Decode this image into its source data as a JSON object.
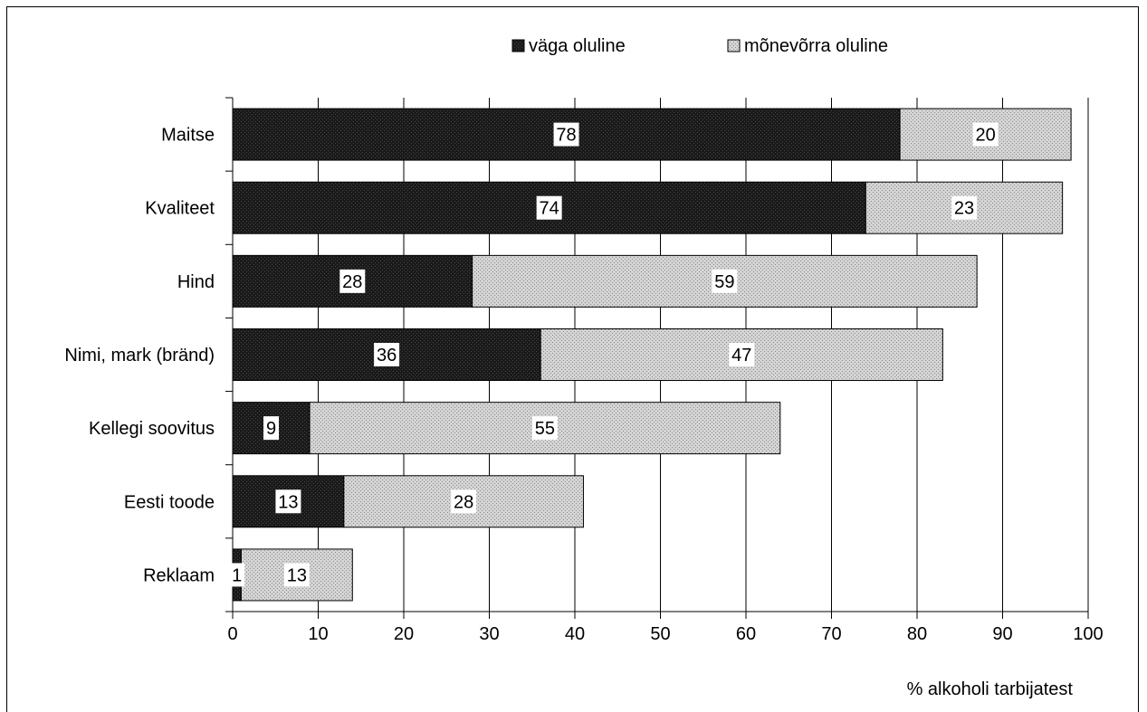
{
  "chart_data": {
    "type": "bar",
    "orientation": "horizontal",
    "stacked": true,
    "categories": [
      "Maitse",
      "Kvaliteet",
      "Hind",
      "Nimi, mark (bränd)",
      "Kellegi soovitus",
      "Eesti toode",
      "Reklaam"
    ],
    "series": [
      {
        "name": "väga oluline",
        "values": [
          78,
          74,
          28,
          36,
          9,
          13,
          1
        ],
        "color": "#111111"
      },
      {
        "name": "mõnevõrra oluline",
        "values": [
          20,
          23,
          59,
          47,
          55,
          28,
          13
        ],
        "color": "#c8c8c8"
      }
    ],
    "xlabel": "% alkoholi tarbijatest",
    "xlim": [
      0,
      100
    ],
    "xticks": [
      0,
      10,
      20,
      30,
      40,
      50,
      60,
      70,
      80,
      90,
      100
    ],
    "grid": "vertical",
    "legend": "top"
  }
}
